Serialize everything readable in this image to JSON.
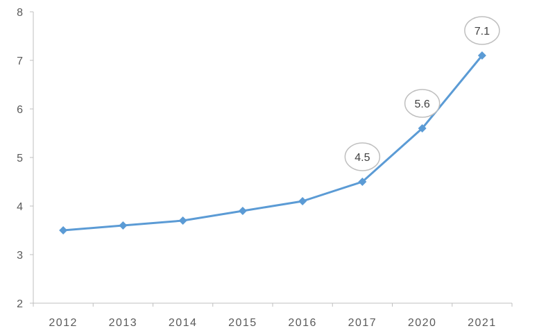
{
  "chart_data": {
    "type": "line",
    "title": "",
    "xlabel": "",
    "ylabel": "",
    "categories": [
      "2012",
      "2013",
      "2014",
      "2015",
      "2016",
      "2017",
      "2020",
      "2021"
    ],
    "series": [
      {
        "values": [
          3.5,
          3.6,
          3.7,
          3.9,
          4.1,
          4.5,
          5.6,
          7.1
        ],
        "color": "#5b9bd5",
        "marker": "diamond"
      }
    ],
    "ylim": [
      2,
      8
    ],
    "yticks": [
      2,
      3,
      4,
      5,
      6,
      7,
      8
    ],
    "grid": false,
    "legend": "none",
    "data_labels": [
      {
        "category": "2017",
        "text": "4.5"
      },
      {
        "category": "2020",
        "text": "5.6"
      },
      {
        "category": "2021",
        "text": "7.1"
      }
    ],
    "axis_color": "#bfbfbf",
    "callout_border_color": "#bfbfbf"
  }
}
